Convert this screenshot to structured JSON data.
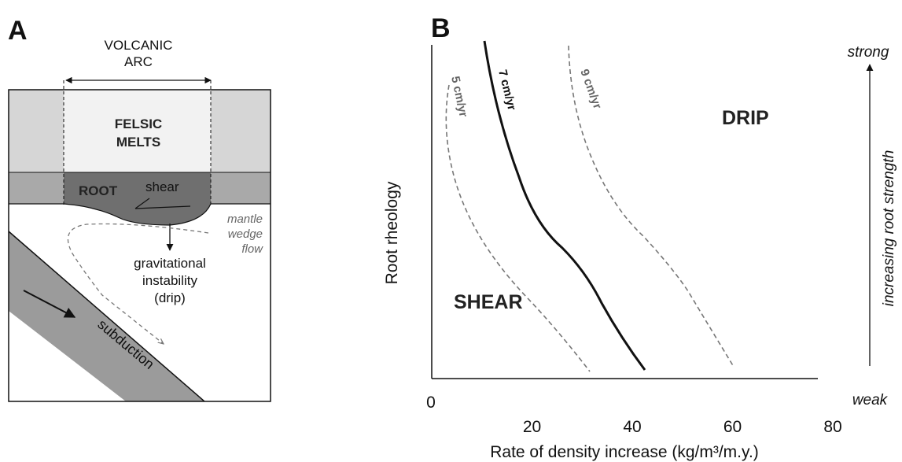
{
  "panel_a": {
    "panel_label": "A",
    "volcanic_arc": [
      "VOLCANIC",
      "ARC"
    ],
    "felsic_melts": [
      "FELSIC",
      "MELTS"
    ],
    "root": "ROOT",
    "shear": "shear",
    "mantle_wedge_flow": [
      "mantle",
      "wedge",
      "flow"
    ],
    "gravitational_instability": [
      "gravitational",
      "instability",
      "(drip)"
    ],
    "subduction": "subduction",
    "colors": {
      "crust_side": "#d6d6d6",
      "arc_crust": "#f2f2f2",
      "lower_crust": "#a9a9a9",
      "root": "#6f6f6f",
      "slab": "#9b9b9b",
      "dashed": "#777777"
    }
  },
  "panel_b": {
    "panel_label": "B",
    "y_axis_label": "Root rheology",
    "x_axis_label": "Rate of density increase (kg/m³/m.y.)",
    "x_origin_label": "0",
    "x_ticks": [
      {
        "value": 20,
        "label": "20"
      },
      {
        "value": 40,
        "label": "40"
      },
      {
        "value": 60,
        "label": "60"
      },
      {
        "value": 80,
        "label": "80"
      }
    ],
    "strong_label": "strong",
    "weak_label": "weak",
    "strength_label": "increasing root strength",
    "region_drip": "DRIP",
    "region_shear": "SHEAR",
    "curves": [
      {
        "label": "5 cm/yr",
        "style": "dashed",
        "color": "#777777"
      },
      {
        "label": "7 cm/yr",
        "style": "solid",
        "color": "#111111"
      },
      {
        "label": "9 cm/yr",
        "style": "dashed",
        "color": "#777777"
      }
    ]
  }
}
